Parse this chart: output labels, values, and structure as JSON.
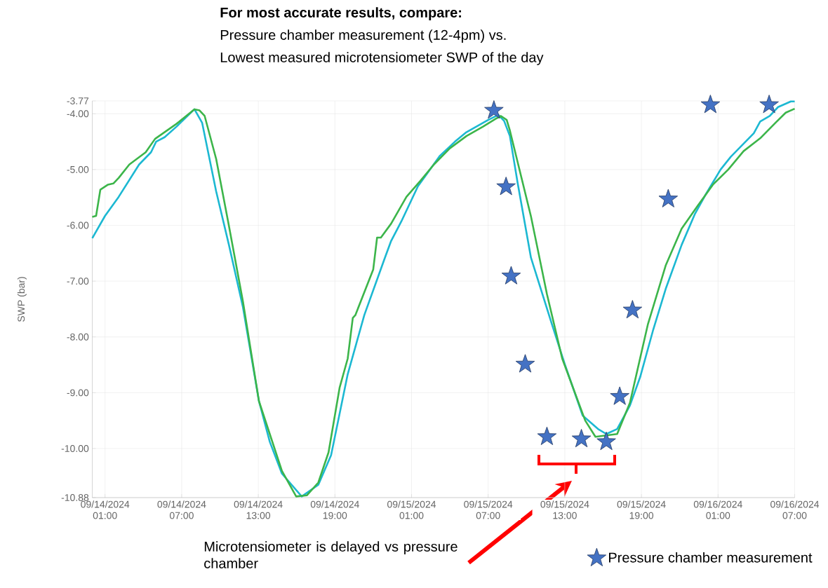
{
  "chart_data": {
    "type": "line",
    "title": "For most accurate results, compare:",
    "subtitle": "Pressure chamber measurement (12-4pm) vs.",
    "annotations": [
      "Lowest measured microtensiometer SWP of the day",
      "Microtensiometer is delayed vs pressure chamber"
    ],
    "ylabel": "SWP (bar)",
    "xlim": [
      "2024-09-14T00:00",
      "2024-09-16T07:00"
    ],
    "xticks": [
      {
        "value": "2024-09-14T01:00",
        "label": "09/14/2024 01:00"
      },
      {
        "value": "2024-09-14T07:00",
        "label": "09/14/2024 07:00"
      },
      {
        "value": "2024-09-14T13:00",
        "label": "09/14/2024 13:00"
      },
      {
        "value": "2024-09-14T19:00",
        "label": "09/14/2024 19:00"
      },
      {
        "value": "2024-09-15T01:00",
        "label": "09/15/2024 01:00"
      },
      {
        "value": "2024-09-15T07:00",
        "label": "09/15/2024 07:00"
      },
      {
        "value": "2024-09-15T13:00",
        "label": "09/15/2024 13:00"
      },
      {
        "value": "2024-09-15T19:00",
        "label": "09/15/2024 19:00"
      },
      {
        "value": "2024-09-16T01:00",
        "label": "09/16/2024 01:00"
      },
      {
        "value": "2024-09-16T07:00",
        "label": "09/16/2024 07:00"
      }
    ],
    "ylim": [
      -10.88,
      -3.77
    ],
    "yticks": [
      {
        "value": -10.88,
        "label": "-10.88"
      },
      {
        "value": -10,
        "label": "-10.00"
      },
      {
        "value": -9,
        "label": "-9.00"
      },
      {
        "value": -8,
        "label": "-8.00"
      },
      {
        "value": -7,
        "label": "-7.00"
      },
      {
        "value": -6,
        "label": "-6.00"
      },
      {
        "value": -5,
        "label": "-5.00"
      },
      {
        "value": -4,
        "label": "-4.00"
      },
      {
        "value": -3.77,
        "label": "-3.77"
      }
    ],
    "grid": true,
    "legend": "bottom right",
    "series": [
      {
        "color": "#3cb54a",
        "line_style": "solid",
        "marker": "none",
        "x": [
          "2024-09-14T00:00",
          "2024-09-14T00:18",
          "2024-09-14T00:38",
          "2024-09-14T01:14",
          "2024-09-14T01:39",
          "2024-09-14T02:04",
          "2024-09-14T02:54",
          "2024-09-14T04:11",
          "2024-09-14T04:55",
          "2024-09-14T06:36",
          "2024-09-14T08:00",
          "2024-09-14T08:24",
          "2024-09-14T08:48",
          "2024-09-14T09:42",
          "2024-09-14T10:42",
          "2024-09-14T11:48",
          "2024-09-14T13:03",
          "2024-09-14T14:51",
          "2024-09-14T15:58",
          "2024-09-14T16:48",
          "2024-09-14T17:42",
          "2024-09-14T18:30",
          "2024-09-14T19:22",
          "2024-09-14T20:00",
          "2024-09-14T20:24",
          "2024-09-14T20:36",
          "2024-09-14T22:00",
          "2024-09-14T22:18",
          "2024-09-14T22:36",
          "2024-09-14T23:24",
          "2024-09-15T00:36",
          "2024-09-15T01:42",
          "2024-09-15T02:45",
          "2024-09-15T04:00",
          "2024-09-15T05:18",
          "2024-09-15T06:36",
          "2024-09-15T07:36",
          "2024-09-15T08:00",
          "2024-09-15T08:27",
          "2024-09-15T08:42",
          "2024-09-15T09:18",
          "2024-09-15T10:21",
          "2024-09-15T11:36",
          "2024-09-15T12:48",
          "2024-09-15T14:36",
          "2024-09-15T15:24",
          "2024-09-15T16:30",
          "2024-09-15T17:06",
          "2024-09-15T18:06",
          "2024-09-15T19:30",
          "2024-09-15T20:54",
          "2024-09-15T22:09",
          "2024-09-15T23:24",
          "2024-09-16T00:36",
          "2024-09-16T01:48",
          "2024-09-16T03:00",
          "2024-09-16T04:18",
          "2024-09-16T05:30",
          "2024-09-16T06:18",
          "2024-09-16T07:00"
        ],
        "values": [
          -5.85,
          -5.83,
          -5.36,
          -5.27,
          -5.25,
          -5.15,
          -4.91,
          -4.69,
          -4.45,
          -4.18,
          -3.92,
          -3.94,
          -4.04,
          -4.81,
          -6.01,
          -7.37,
          -9.15,
          -10.4,
          -10.86,
          -10.84,
          -10.61,
          -10.07,
          -8.91,
          -8.39,
          -7.66,
          -7.61,
          -6.79,
          -6.22,
          -6.22,
          -5.97,
          -5.49,
          -5.2,
          -4.91,
          -4.62,
          -4.4,
          -4.23,
          -4.09,
          -4.04,
          -4.11,
          -4.3,
          -4.86,
          -5.84,
          -7.23,
          -8.39,
          -9.5,
          -9.79,
          null,
          -9.74,
          -9.18,
          -7.78,
          -6.72,
          -6.06,
          -5.65,
          -5.27,
          -5.0,
          -4.67,
          -4.44,
          -4.16,
          -3.98,
          -3.91
        ]
      },
      {
        "color": "#1cb8d2",
        "line_style": "solid",
        "marker": "none",
        "x": [
          "2024-09-14T00:00",
          "2024-09-14T01:00",
          "2024-09-14T02:04",
          "2024-09-14T03:40",
          "2024-09-14T04:36",
          "2024-09-14T05:00",
          "2024-09-14T05:40",
          "2024-09-14T06:36",
          "2024-09-14T08:00",
          "2024-09-14T08:36",
          "2024-09-14T09:42",
          "2024-09-14T10:42",
          "2024-09-14T11:48",
          "2024-09-14T13:03",
          "2024-09-14T13:54",
          "2024-09-14T14:51",
          "2024-09-14T16:24",
          "2024-09-14T17:42",
          "2024-09-14T18:42",
          "2024-09-14T20:00",
          "2024-09-14T21:18",
          "2024-09-14T22:54",
          "2024-09-14T23:24",
          "2024-09-15T00:12",
          "2024-09-15T01:30",
          "2024-09-15T03:12",
          "2024-09-15T04:24",
          "2024-09-15T05:18",
          "2024-09-15T07:00",
          "2024-09-15T07:48",
          "2024-09-15T08:15",
          "2024-09-15T08:42",
          "2024-09-15T09:18",
          "2024-09-15T10:21",
          "2024-09-15T12:00",
          "2024-09-15T13:00",
          "2024-09-15T14:24",
          "2024-09-15T15:36",
          "2024-09-15T16:15",
          "2024-09-15T17:06",
          "2024-09-15T18:06",
          "2024-09-15T18:54",
          "2024-09-15T19:54",
          "2024-09-15T20:54",
          "2024-09-15T22:09",
          "2024-09-15T23:12",
          "2024-09-16T00:00",
          "2024-09-16T01:12",
          "2024-09-16T02:00",
          "2024-09-16T03:48",
          "2024-09-16T04:18",
          "2024-09-16T05:03",
          "2024-09-16T05:42",
          "2024-09-16T06:42",
          "2024-09-16T07:00"
        ],
        "values": [
          -6.23,
          -5.83,
          -5.49,
          -4.91,
          -4.69,
          -4.5,
          -4.42,
          -4.23,
          -3.92,
          -4.16,
          -5.39,
          -6.35,
          -7.47,
          -9.15,
          -9.88,
          -10.45,
          -10.86,
          -10.65,
          -10.12,
          -8.67,
          -7.61,
          -6.59,
          -6.28,
          -5.93,
          -5.3,
          -4.76,
          -4.5,
          -4.33,
          -4.11,
          -4.02,
          -4.13,
          -4.4,
          -5.23,
          -6.58,
          -7.78,
          -8.49,
          -9.41,
          -9.65,
          -9.74,
          -9.65,
          -9.23,
          -8.72,
          -7.89,
          -7.14,
          -6.35,
          -5.79,
          -5.46,
          -5.0,
          -4.77,
          -4.35,
          -4.14,
          -4.04,
          -3.88,
          -3.78,
          -3.78
        ]
      },
      {
        "type": "scatter",
        "name": "Pressure chamber measurement",
        "color": "#4472c4",
        "marker": "star",
        "x": [
          "2024-09-15T07:27",
          "2024-09-15T08:24",
          "2024-09-15T08:48",
          "2024-09-15T09:54",
          "2024-09-15T11:36",
          "2024-09-15T14:18",
          "2024-09-15T16:15",
          "2024-09-15T17:18",
          "2024-09-15T18:18",
          "2024-09-15T21:06",
          "2024-09-16T00:24",
          "2024-09-16T05:00"
        ],
        "values": [
          -3.94,
          -5.31,
          -6.91,
          -8.49,
          -9.79,
          -9.83,
          -9.88,
          -9.07,
          -7.52,
          -5.53,
          -3.84,
          -3.84
        ]
      }
    ]
  }
}
